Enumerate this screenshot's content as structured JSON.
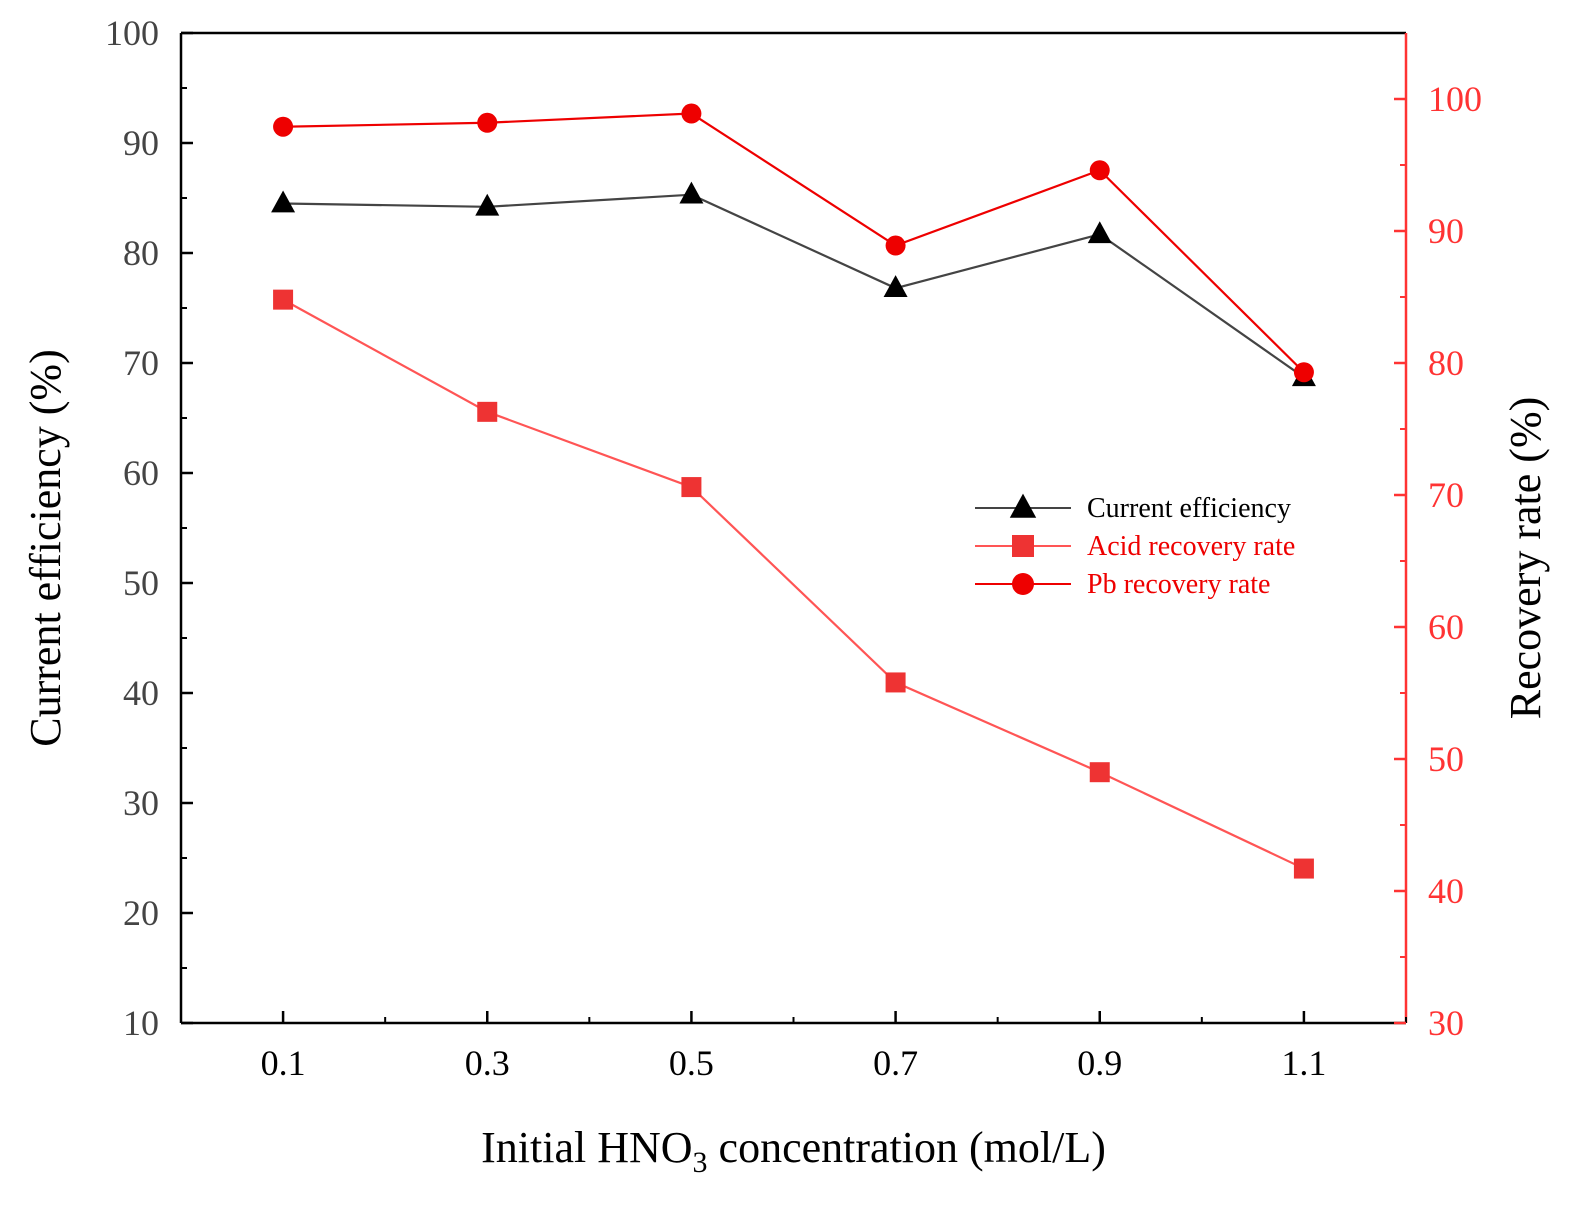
{
  "chart_data": {
    "type": "line",
    "x": [
      0.1,
      0.3,
      0.5,
      0.7,
      0.9,
      1.1
    ],
    "x_tick_labels": [
      "0.1",
      "0.3",
      "0.5",
      "0.7",
      "0.9",
      "1.1"
    ],
    "xlim": [
      0.0,
      1.2
    ],
    "xlabel": {
      "prefix": "Initial HNO",
      "subscript": "3",
      "suffix": " concentration (mol/L)"
    },
    "ylabel_left": "Current efficiency (%)",
    "ylim_left": [
      10,
      100
    ],
    "y_ticks_left": [
      10,
      20,
      30,
      40,
      50,
      60,
      70,
      80,
      90,
      100
    ],
    "ylabel_right": "Recovery rate (%)",
    "ylim_right": [
      30,
      105
    ],
    "y_ticks_right": [
      30,
      40,
      50,
      60,
      70,
      80,
      90,
      100
    ],
    "grid": false,
    "legend_position": "center-right",
    "series": [
      {
        "name": "Current efficiency",
        "axis": "left",
        "marker": "triangle",
        "color": "#000000",
        "line_color": "#444444",
        "label_color": "#000000",
        "values": [
          84.5,
          84.2,
          85.3,
          76.8,
          81.7,
          68.7
        ]
      },
      {
        "name": "Acid recovery rate",
        "axis": "right",
        "marker": "square",
        "color": "#ee3333",
        "line_color": "#ff5555",
        "label_color": "#ee0000",
        "values": [
          84.8,
          76.3,
          70.6,
          55.8,
          49.0,
          41.7
        ]
      },
      {
        "name": "Pb recovery rate",
        "axis": "right",
        "marker": "circle",
        "color": "#ee0000",
        "line_color": "#ee0000",
        "label_color": "#ee0000",
        "values": [
          97.9,
          98.2,
          98.9,
          88.9,
          94.6,
          79.3
        ]
      }
    ],
    "colors": {
      "left_axis": "#000000",
      "right_axis": "#ff3333"
    }
  }
}
